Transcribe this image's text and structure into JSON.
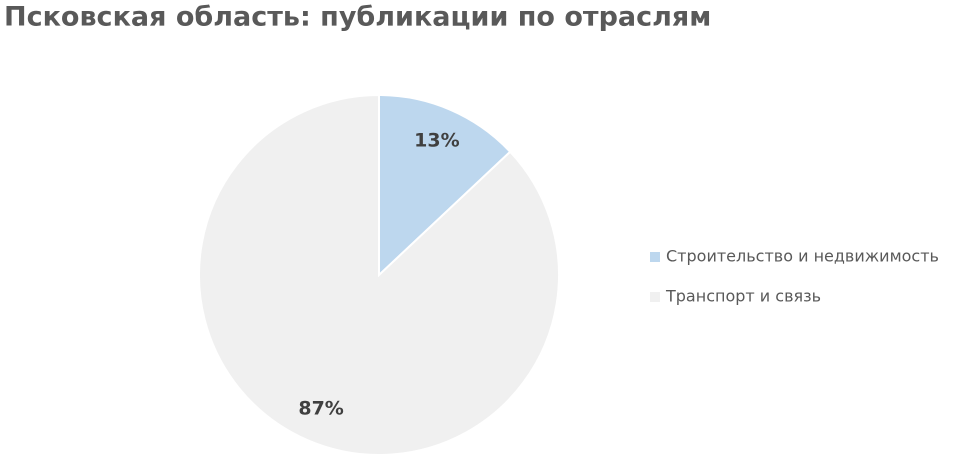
{
  "chart_data": {
    "type": "pie",
    "title": "Псковская область: публикации по отраслям",
    "categories": [
      "Строительство и недвижимость",
      "Транспорт и связь"
    ],
    "values": [
      13,
      87
    ],
    "value_labels": [
      "13%",
      "87%"
    ],
    "colors": [
      "#bdd7ee",
      "#f0f0f0"
    ],
    "legend": "right"
  }
}
